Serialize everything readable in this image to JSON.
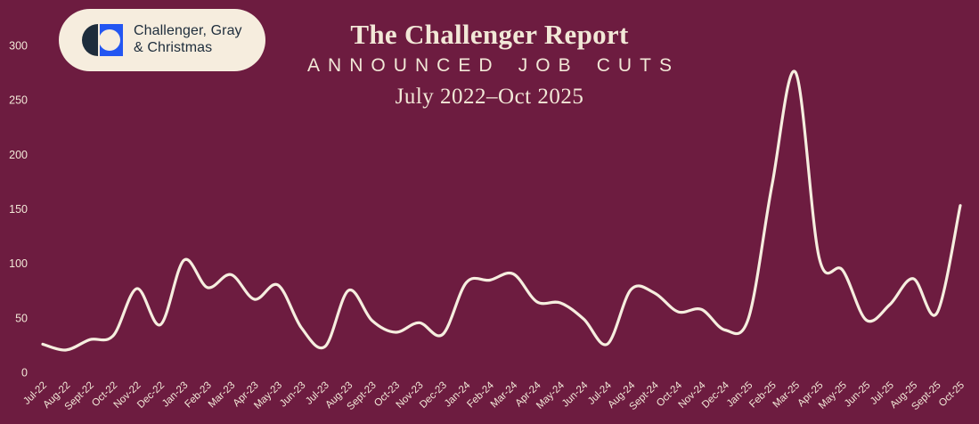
{
  "page": {
    "background": "#6D1C40"
  },
  "colors": {
    "background": "#6D1C40",
    "cream_text": "#F2E8D7",
    "line": "#F6EEDF",
    "logo_background": "#F6EDDE",
    "logo_navy": "#1E2D3C",
    "logo_blue": "#2356F2"
  },
  "logo": {
    "line1": "Challenger, Gray",
    "line2": "& Christmas"
  },
  "header": {
    "title": "The Challenger Report",
    "subtitle": "ANNOUNCED JOB CUTS",
    "date_range": "July 2022–Oct 2025"
  },
  "chart_data": {
    "type": "line",
    "title": "The Challenger Report",
    "subtitle": "Announced Job Cuts",
    "date_range": "July 2022–Oct 2025",
    "xlabel": "",
    "ylabel": "",
    "ylim": [
      0,
      300
    ],
    "y_ticks": [
      0,
      50,
      100,
      150,
      200,
      250,
      300
    ],
    "grid": false,
    "legend_position": "none",
    "smooth": true,
    "line_color": "#F6EEDF",
    "categories": [
      "Jul-22",
      "Aug-22",
      "Sept-22",
      "Oct-22",
      "Nov-22",
      "Dec-22",
      "Jan-23",
      "Feb-23",
      "Mar-23",
      "Apr-23",
      "May-23",
      "Jun-23",
      "Jul-23",
      "Aug-23",
      "Sept-23",
      "Oct-23",
      "Nov-23",
      "Dec-23",
      "Jan-24",
      "Feb-24",
      "Mar-24",
      "Apr-24",
      "May-24",
      "Jun-24",
      "Jul-24",
      "Aug-24",
      "Sept-24",
      "Oct-24",
      "Nov-24",
      "Dec-24",
      "Jan-25",
      "Feb-25",
      "Mar-25",
      "Apr-25",
      "May-25",
      "Jun-25",
      "Jul-25",
      "Aug-25",
      "Sept-25",
      "Oct-25"
    ],
    "values": [
      25.8,
      20.5,
      30.0,
      33.8,
      76.8,
      43.7,
      102.9,
      77.8,
      89.7,
      67.0,
      80.1,
      40.7,
      23.7,
      75.2,
      47.5,
      36.8,
      45.5,
      34.8,
      82.3,
      84.6,
      90.3,
      64.8,
      63.8,
      48.8,
      25.9,
      75.9,
      72.8,
      55.6,
      57.7,
      38.8,
      49.8,
      172.0,
      275.2,
      105.4,
      93.8,
      48.0,
      62.1,
      86.0,
      54.1,
      153.1
    ]
  }
}
